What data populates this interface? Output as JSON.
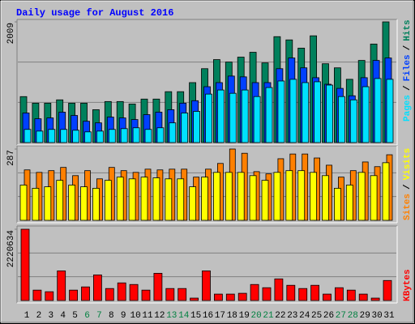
{
  "chart_data": [
    {
      "type": "bar",
      "title": "Daily usage for August 2016",
      "legend_separator": "/",
      "ylim": [
        0,
        2009
      ],
      "yticks": [
        2009
      ],
      "series": [
        {
          "name": "Pages",
          "color": "#00e0ff",
          "values": [
            219,
            191,
            219,
            219,
            205,
            178,
            191,
            219,
            232,
            246,
            219,
            246,
            328,
            492,
            519,
            807,
            875,
            820,
            875,
            766,
            916,
            1025,
            1053,
            998,
            1012,
            957,
            766,
            711,
            930,
            1066,
            1053
          ]
        },
        {
          "name": "Files",
          "color": "#0040ff",
          "values": [
            492,
            396,
            410,
            506,
            451,
            355,
            328,
            424,
            410,
            383,
            465,
            506,
            547,
            656,
            697,
            930,
            998,
            1107,
            1094,
            998,
            998,
            1230,
            1408,
            1244,
            1080,
            971,
            902,
            779,
            1080,
            1367,
            1408
          ]
        },
        {
          "name": "Hits",
          "color": "#00805c",
          "values": [
            765,
            656,
            656,
            711,
            656,
            656,
            547,
            683,
            683,
            642,
            724,
            724,
            847,
            847,
            998,
            1230,
            1381,
            1340,
            1422,
            1503,
            1326,
            1763,
            1709,
            1572,
            1777,
            1312,
            1244,
            1053,
            1367,
            1640,
            2009
          ]
        }
      ]
    },
    {
      "type": "bar",
      "legend_separator": "/",
      "ylim": [
        0,
        287
      ],
      "yticks": [
        287
      ],
      "series": [
        {
          "name": "Sites",
          "color": "#ff8000",
          "values": [
            203,
            193,
            200,
            213,
            180,
            200,
            167,
            213,
            200,
            193,
            206,
            203,
            206,
            206,
            174,
            206,
            229,
            287,
            270,
            196,
            187,
            248,
            267,
            267,
            251,
            222,
            174,
            200,
            235,
            216,
            264
          ]
        },
        {
          "name": "Visits",
          "color": "#ffff00",
          "values": [
            142,
            129,
            135,
            161,
            142,
            135,
            129,
            161,
            174,
            167,
            174,
            171,
            167,
            167,
            135,
            174,
            193,
            193,
            193,
            180,
            161,
            193,
            200,
            200,
            193,
            180,
            129,
            142,
            193,
            180,
            232
          ]
        }
      ]
    },
    {
      "type": "bar",
      "ylim": [
        0,
        2220634
      ],
      "yticks": [
        2220634
      ],
      "categories": [
        "1",
        "2",
        "3",
        "4",
        "5",
        "6",
        "7",
        "8",
        "9",
        "10",
        "11",
        "12",
        "13",
        "14",
        "15",
        "16",
        "17",
        "18",
        "19",
        "20",
        "21",
        "22",
        "23",
        "24",
        "25",
        "26",
        "27",
        "28",
        "29",
        "30",
        "31"
      ],
      "category_colors": [
        "#000000",
        "#000000",
        "#000000",
        "#000000",
        "#000000",
        "#008040",
        "#008040",
        "#000000",
        "#000000",
        "#000000",
        "#000000",
        "#000000",
        "#008040",
        "#008040",
        "#000000",
        "#000000",
        "#000000",
        "#000000",
        "#000000",
        "#008040",
        "#008040",
        "#000000",
        "#000000",
        "#000000",
        "#000000",
        "#000000",
        "#008040",
        "#008040",
        "#000000",
        "#000000",
        "#000000"
      ],
      "series": [
        {
          "name": "KBytes",
          "color": "#ff0000",
          "values": [
            2220634,
            324000,
            274000,
            923000,
            324000,
            424000,
            798000,
            374000,
            549000,
            499000,
            324000,
            848000,
            374000,
            374000,
            75000,
            923000,
            200000,
            200000,
            225000,
            499000,
            399000,
            674000,
            474000,
            374000,
            474000,
            200000,
            399000,
            324000,
            200000,
            75000,
            624000
          ]
        }
      ]
    }
  ]
}
